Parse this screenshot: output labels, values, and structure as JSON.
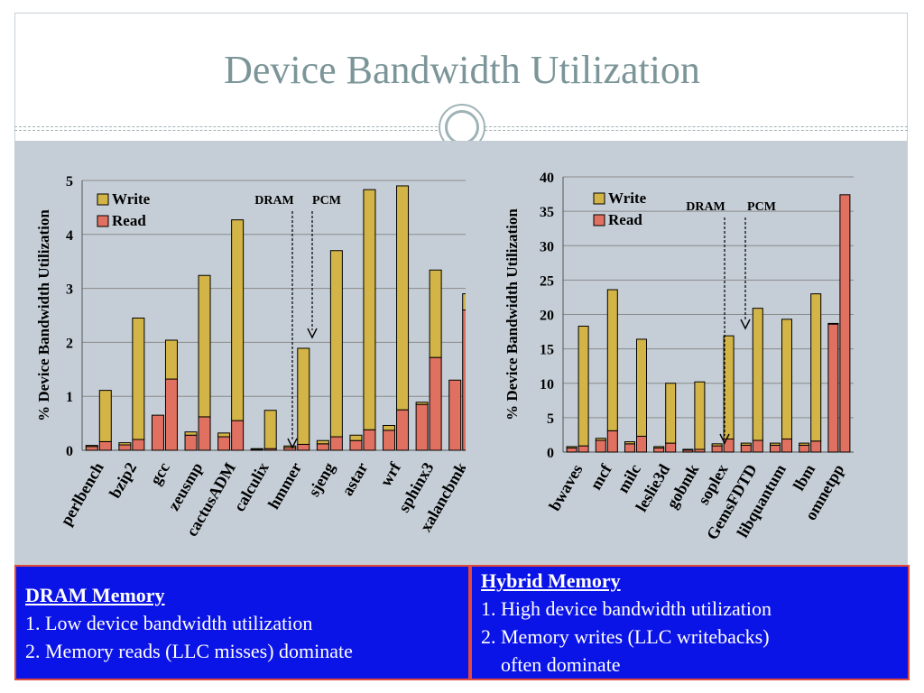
{
  "slide": {
    "title": "Device Bandwidth Utilization"
  },
  "colors": {
    "write": "#d3b446",
    "read": "#e0705f",
    "panel": "#c5ced6",
    "box": "#0b14e6",
    "box_border": "#e04a3a"
  },
  "chart_data": [
    {
      "type": "bar",
      "stacked": true,
      "ylabel": "% Device Bandwidth Utilization",
      "xlabel": "",
      "ylim": [
        0,
        5
      ],
      "yticks": [
        0,
        1,
        2,
        3,
        4,
        5
      ],
      "legend": [
        "Write",
        "Read"
      ],
      "legend_position": "top-left",
      "annotation_labels": [
        "DRAM",
        "PCM"
      ],
      "categories": [
        "perlbench",
        "bzip2",
        "gcc",
        "zeusmp",
        "cactusADM",
        "calculix",
        "hmmer",
        "sjeng",
        "astar",
        "wrf",
        "sphinx3",
        "xalancbmk"
      ],
      "series": [
        {
          "name": "Write",
          "dram": [
            0.02,
            0.04,
            0.0,
            0.06,
            0.07,
            0.01,
            0.03,
            0.06,
            0.1,
            0.09,
            0.04,
            0.0
          ],
          "pcm": [
            0.95,
            2.25,
            0.72,
            2.62,
            3.72,
            0.71,
            1.78,
            3.45,
            4.45,
            4.15,
            1.62,
            0.3
          ]
        },
        {
          "name": "Read",
          "dram": [
            0.07,
            0.1,
            0.65,
            0.28,
            0.25,
            0.02,
            0.05,
            0.12,
            0.18,
            0.37,
            0.85,
            1.3
          ],
          "pcm": [
            0.16,
            0.2,
            1.32,
            0.62,
            0.55,
            0.03,
            0.11,
            0.25,
            0.38,
            0.75,
            1.72,
            2.6
          ]
        }
      ]
    },
    {
      "type": "bar",
      "stacked": true,
      "ylabel": "% Device Bandwidth Utilization",
      "xlabel": "",
      "ylim": [
        0,
        40
      ],
      "yticks": [
        0,
        5,
        10,
        15,
        20,
        25,
        30,
        35,
        40
      ],
      "legend": [
        "Write",
        "Read"
      ],
      "legend_position": "top-left",
      "annotation_labels": [
        "DRAM",
        "PCM"
      ],
      "categories": [
        "bwaves",
        "mcf",
        "milc",
        "leslie3d",
        "gobmk",
        "soplex",
        "GemsFDTD",
        "libquantum",
        "lbm",
        "omnetpp"
      ],
      "series": [
        {
          "name": "Write",
          "dram": [
            0.2,
            0.3,
            0.3,
            0.2,
            0.1,
            0.3,
            0.3,
            0.3,
            0.3,
            0.1
          ],
          "pcm": [
            17.4,
            20.5,
            14.1,
            8.7,
            9.8,
            15.0,
            19.2,
            17.4,
            21.4,
            0.0
          ]
        },
        {
          "name": "Read",
          "dram": [
            0.6,
            1.7,
            1.2,
            0.6,
            0.3,
            0.9,
            1.0,
            1.0,
            1.0,
            18.6
          ],
          "pcm": [
            0.9,
            3.1,
            2.3,
            1.3,
            0.4,
            1.9,
            1.7,
            1.9,
            1.6,
            37.4
          ]
        }
      ]
    }
  ],
  "boxes": {
    "dram": {
      "heading": "DRAM Memory",
      "line1": "1. Low device bandwidth utilization",
      "line2": "2. Memory reads (LLC misses) dominate"
    },
    "hybrid": {
      "heading": "Hybrid Memory",
      "line1": "1. High device bandwidth utilization",
      "line2": "2. Memory writes (LLC writebacks)",
      "line3": "often dominate"
    }
  }
}
